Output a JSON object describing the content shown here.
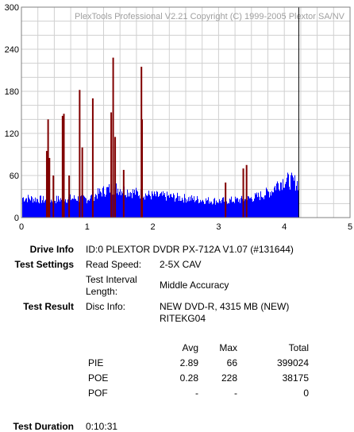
{
  "chart_data": {
    "type": "bar",
    "title": "PlexTools Professional V2.21 Copyright (C) 1999-2005 Plextor SA/NV",
    "xlim": [
      0,
      5
    ],
    "ylim": [
      0,
      300
    ],
    "x_ticks": [
      0,
      1,
      2,
      3,
      4,
      5
    ],
    "y_ticks": [
      0,
      60,
      120,
      180,
      240,
      300
    ],
    "grid": true,
    "end_marker_x": 4.22,
    "series": [
      {
        "name": "PIE",
        "color": "#0000ff",
        "x": [
          0.0,
          0.2,
          0.4,
          0.6,
          0.8,
          1.0,
          1.1,
          1.2,
          1.3,
          1.4,
          1.5,
          1.6,
          1.8,
          2.0,
          2.2,
          2.4,
          2.6,
          2.8,
          3.0,
          3.2,
          3.4,
          3.6,
          3.8,
          3.9,
          4.0,
          4.1,
          4.2
        ],
        "values": [
          30,
          28,
          26,
          28,
          29,
          28,
          33,
          38,
          42,
          45,
          43,
          40,
          36,
          33,
          32,
          30,
          28,
          26,
          25,
          26,
          27,
          32,
          40,
          52,
          56,
          55,
          52
        ]
      },
      {
        "name": "POE",
        "color": "#800000",
        "x": [
          0.38,
          0.4,
          0.42,
          0.48,
          0.62,
          0.64,
          0.72,
          0.88,
          0.92,
          1.08,
          1.36,
          1.39,
          1.42,
          1.55,
          1.82,
          1.83,
          3.1,
          3.37,
          3.42
        ],
        "values": [
          95,
          140,
          85,
          60,
          145,
          148,
          60,
          182,
          100,
          170,
          150,
          228,
          115,
          68,
          215,
          140,
          50,
          70,
          75
        ]
      }
    ]
  },
  "info": {
    "drive_label": "Drive Info",
    "drive_value": "ID:0 PLEXTOR DVDR PX-712A V1.07 (#131644)",
    "settings_label": "Test Settings",
    "read_speed_label": "Read Speed:",
    "read_speed_value": "2-5X CAV",
    "interval_label_1": "Test Interval",
    "interval_label_2": "Length:",
    "interval_value": "Middle Accuracy",
    "result_label": "Test Result",
    "disc_label": "Disc Info:",
    "disc_value_1": "NEW DVD-R, 4315 MB (NEW)",
    "disc_value_2": "RITEKG04",
    "duration_label": "Test Duration",
    "duration_value": "0:10:31"
  },
  "stats": {
    "headers": {
      "avg": "Avg",
      "max": "Max",
      "total": "Total"
    },
    "rows": [
      {
        "name": "PIE",
        "avg": "2.89",
        "max": "66",
        "total": "399024"
      },
      {
        "name": "POE",
        "avg": "0.28",
        "max": "228",
        "total": "38175"
      },
      {
        "name": "POF",
        "avg": "-",
        "max": "-",
        "total": "0"
      }
    ]
  }
}
